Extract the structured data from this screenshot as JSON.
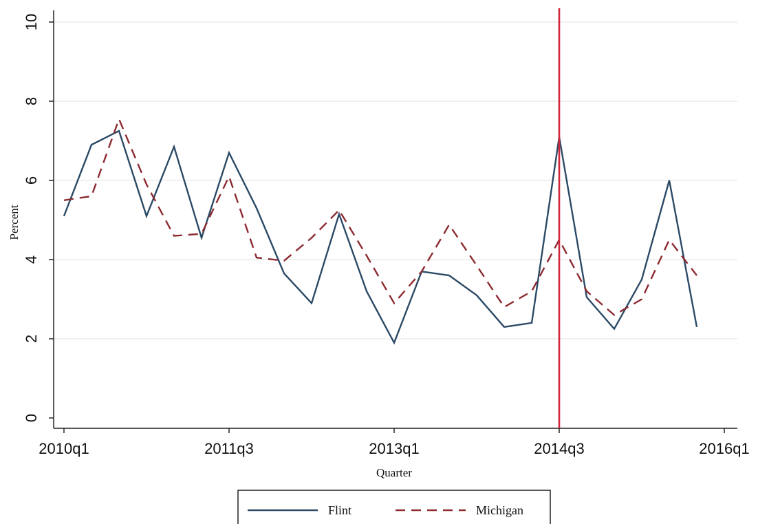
{
  "chart_data": {
    "type": "line",
    "title": "",
    "xlabel": "Quarter",
    "ylabel": "Percent",
    "ylim": [
      0,
      10
    ],
    "yticks": [
      0,
      2,
      4,
      6,
      8,
      10
    ],
    "grid": true,
    "legend_position": "bottom",
    "x": [
      "2010q1",
      "2010q2",
      "2010q3",
      "2010q4",
      "2011q1",
      "2011q2",
      "2011q3",
      "2011q4",
      "2012q1",
      "2012q2",
      "2012q3",
      "2012q4",
      "2013q1",
      "2013q2",
      "2013q3",
      "2013q4",
      "2014q1",
      "2014q2",
      "2014q3",
      "2014q4",
      "2015q1",
      "2015q2",
      "2015q3",
      "2015q4"
    ],
    "xticks": [
      "2010q1",
      "2011q3",
      "2013q1",
      "2014q3",
      "2016q1"
    ],
    "series": [
      {
        "name": "Flint",
        "color": "#2b4a66",
        "style": "solid",
        "values": [
          5.1,
          6.9,
          7.25,
          5.1,
          6.85,
          4.55,
          6.7,
          5.3,
          3.65,
          2.9,
          5.15,
          3.2,
          1.9,
          3.7,
          3.6,
          3.1,
          2.3,
          2.4,
          7.1,
          3.05,
          2.25,
          3.5,
          6.0,
          2.3
        ]
      },
      {
        "name": "Michigan",
        "color": "#8c2a30",
        "style": "dashed",
        "values": [
          5.5,
          5.6,
          7.55,
          5.9,
          4.6,
          4.65,
          6.1,
          4.05,
          3.97,
          4.55,
          5.25,
          4.1,
          2.9,
          3.7,
          4.88,
          3.85,
          2.8,
          3.2,
          4.5,
          3.2,
          2.6,
          3.0,
          4.5,
          3.6
        ]
      }
    ],
    "vline": {
      "x": "2014q3",
      "color": "#d0263c"
    }
  }
}
